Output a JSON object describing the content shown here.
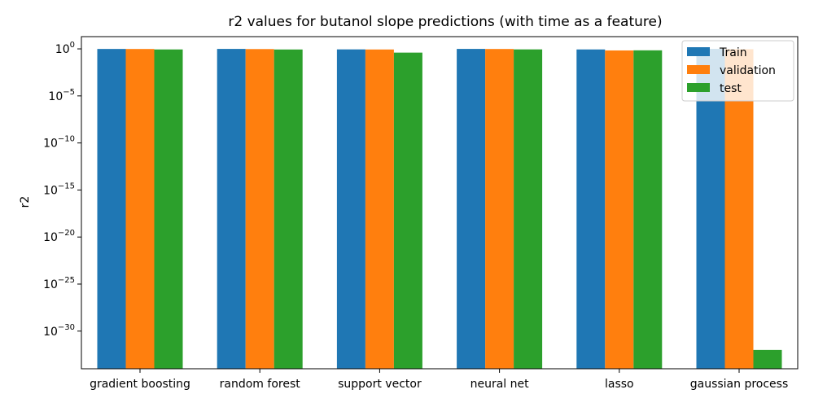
{
  "chart_data": {
    "type": "bar",
    "title": "r2 values for butanol slope predictions (with time as a feature)",
    "xlabel": "",
    "ylabel": "r2",
    "yscale": "log",
    "ylim": [
      1e-34,
      20
    ],
    "yticks": [
      {
        "value": 1.0,
        "base": "10",
        "exp": "0"
      },
      {
        "value": 1e-05,
        "base": "10",
        "exp": "−5"
      },
      {
        "value": 1e-10,
        "base": "10",
        "exp": "−10"
      },
      {
        "value": 1e-15,
        "base": "10",
        "exp": "−15"
      },
      {
        "value": 1e-20,
        "base": "10",
        "exp": "−20"
      },
      {
        "value": 1e-25,
        "base": "10",
        "exp": "−25"
      },
      {
        "value": 1e-30,
        "base": "10",
        "exp": "−30"
      }
    ],
    "categories": [
      "gradient boosting",
      "random forest",
      "support vector",
      "neural net",
      "lasso",
      "gaussian process"
    ],
    "series": [
      {
        "name": "Train",
        "color": "#1f77b4",
        "values": [
          0.98,
          0.99,
          0.88,
          0.99,
          0.87,
          0.999
        ]
      },
      {
        "name": "validation",
        "color": "#ff7f0e",
        "values": [
          0.97,
          0.95,
          0.86,
          0.97,
          0.68,
          0.93
        ]
      },
      {
        "name": "test",
        "color": "#2ca02c",
        "values": [
          0.87,
          0.86,
          0.4,
          0.88,
          0.7,
          1e-32
        ]
      }
    ],
    "legend_position": "top-right",
    "grid": false
  }
}
